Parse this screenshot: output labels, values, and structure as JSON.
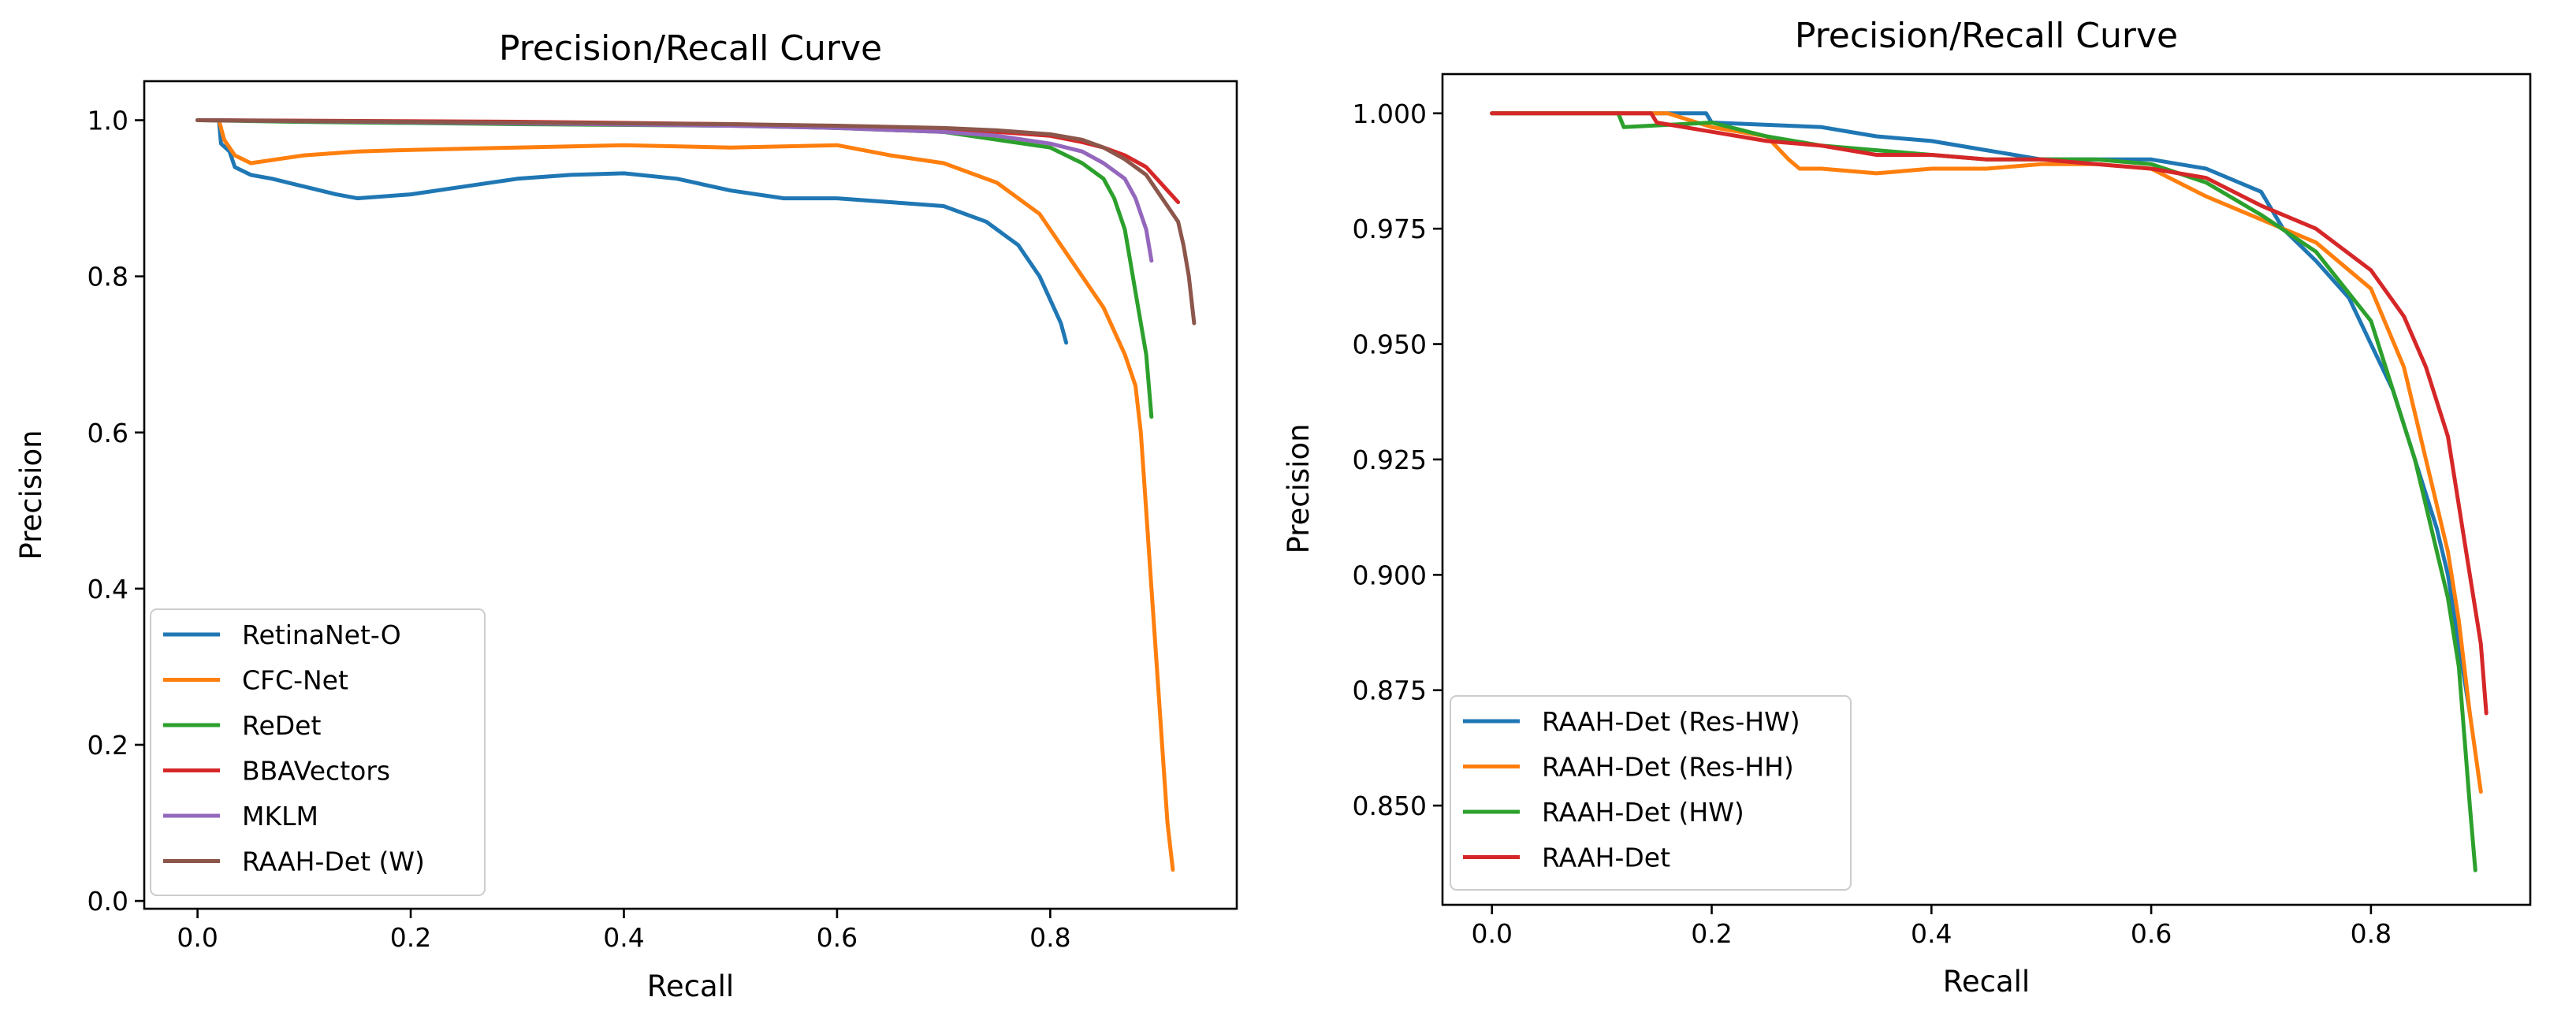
{
  "chart_data": [
    {
      "type": "line",
      "title": "Precision/Recall Curve",
      "xlabel": "Recall",
      "ylabel": "Precision",
      "xlim": [
        -0.05,
        0.975
      ],
      "ylim": [
        -0.01,
        1.05
      ],
      "xticks": [
        0.0,
        0.2,
        0.4,
        0.6,
        0.8
      ],
      "xtick_labels": [
        "0.0",
        "0.2",
        "0.4",
        "0.6",
        "0.8"
      ],
      "yticks": [
        0.0,
        0.2,
        0.4,
        0.6,
        0.8,
        1.0
      ],
      "ytick_labels": [
        "0.0",
        "0.2",
        "0.4",
        "0.6",
        "0.8",
        "1.0"
      ],
      "grid": false,
      "legend_position": "lower-left",
      "series": [
        {
          "name": "RetinaNet-O",
          "color": "#1f77b4",
          "x": [
            0.0,
            0.02,
            0.022,
            0.03,
            0.035,
            0.05,
            0.07,
            0.1,
            0.13,
            0.15,
            0.2,
            0.25,
            0.3,
            0.35,
            0.4,
            0.45,
            0.5,
            0.55,
            0.6,
            0.65,
            0.7,
            0.74,
            0.77,
            0.79,
            0.8,
            0.81,
            0.815
          ],
          "y": [
            1.0,
            1.0,
            0.97,
            0.96,
            0.94,
            0.93,
            0.925,
            0.915,
            0.905,
            0.9,
            0.905,
            0.915,
            0.925,
            0.93,
            0.932,
            0.925,
            0.91,
            0.9,
            0.9,
            0.895,
            0.89,
            0.87,
            0.84,
            0.8,
            0.77,
            0.74,
            0.715
          ]
        },
        {
          "name": "CFC-Net",
          "color": "#ff7f0e",
          "x": [
            0.0,
            0.02,
            0.025,
            0.035,
            0.05,
            0.1,
            0.15,
            0.2,
            0.3,
            0.4,
            0.5,
            0.6,
            0.65,
            0.7,
            0.75,
            0.79,
            0.82,
            0.85,
            0.87,
            0.88,
            0.885,
            0.89,
            0.895,
            0.9,
            0.905,
            0.91,
            0.915
          ],
          "y": [
            1.0,
            1.0,
            0.975,
            0.955,
            0.945,
            0.955,
            0.96,
            0.962,
            0.965,
            0.968,
            0.965,
            0.968,
            0.955,
            0.945,
            0.92,
            0.88,
            0.82,
            0.76,
            0.7,
            0.66,
            0.6,
            0.5,
            0.4,
            0.3,
            0.2,
            0.1,
            0.04
          ]
        },
        {
          "name": "ReDet",
          "color": "#2ca02c",
          "x": [
            0.0,
            0.09,
            0.3,
            0.5,
            0.6,
            0.7,
            0.75,
            0.8,
            0.83,
            0.85,
            0.86,
            0.87,
            0.875,
            0.88,
            0.885,
            0.89,
            0.895
          ],
          "y": [
            1.0,
            0.998,
            0.995,
            0.993,
            0.99,
            0.985,
            0.975,
            0.965,
            0.945,
            0.925,
            0.9,
            0.86,
            0.82,
            0.78,
            0.74,
            0.7,
            0.62
          ]
        },
        {
          "name": "BBAVectors",
          "color": "#d62728",
          "x": [
            0.0,
            0.3,
            0.5,
            0.6,
            0.7,
            0.75,
            0.8,
            0.83,
            0.85,
            0.87,
            0.89,
            0.9,
            0.91,
            0.92
          ],
          "y": [
            1.0,
            0.998,
            0.995,
            0.992,
            0.988,
            0.985,
            0.98,
            0.972,
            0.965,
            0.955,
            0.94,
            0.925,
            0.91,
            0.895
          ]
        },
        {
          "name": "MKLM",
          "color": "#9467bd",
          "x": [
            0.0,
            0.3,
            0.5,
            0.6,
            0.7,
            0.75,
            0.8,
            0.83,
            0.85,
            0.87,
            0.88,
            0.89,
            0.895
          ],
          "y": [
            1.0,
            0.996,
            0.993,
            0.99,
            0.985,
            0.98,
            0.97,
            0.96,
            0.945,
            0.925,
            0.9,
            0.86,
            0.82
          ]
        },
        {
          "name": "RAAH-Det (W)",
          "color": "#8c564b",
          "x": [
            0.0,
            0.3,
            0.5,
            0.6,
            0.7,
            0.75,
            0.8,
            0.83,
            0.85,
            0.87,
            0.89,
            0.9,
            0.91,
            0.92,
            0.925,
            0.93,
            0.935
          ],
          "y": [
            1.0,
            0.997,
            0.995,
            0.993,
            0.99,
            0.987,
            0.982,
            0.975,
            0.965,
            0.95,
            0.93,
            0.91,
            0.89,
            0.87,
            0.84,
            0.8,
            0.74
          ]
        }
      ]
    },
    {
      "type": "line",
      "title": "Precision/Recall Curve",
      "xlabel": "Recall",
      "ylabel": "Precision",
      "xlim": [
        -0.045,
        0.945
      ],
      "ylim": [
        0.8285,
        1.0085
      ],
      "xticks": [
        0.0,
        0.2,
        0.4,
        0.6,
        0.8
      ],
      "xtick_labels": [
        "0.0",
        "0.2",
        "0.4",
        "0.6",
        "0.8"
      ],
      "yticks": [
        0.85,
        0.875,
        0.9,
        0.925,
        0.95,
        0.975,
        1.0
      ],
      "ytick_labels": [
        "0.850",
        "0.875",
        "0.900",
        "0.925",
        "0.950",
        "0.975",
        "1.000"
      ],
      "grid": false,
      "legend_position": "lower-left",
      "series": [
        {
          "name": "RAAH-Det (Res-HW)",
          "color": "#1f77b4",
          "x": [
            0.0,
            0.195,
            0.2,
            0.3,
            0.35,
            0.4,
            0.45,
            0.5,
            0.55,
            0.6,
            0.65,
            0.7,
            0.72,
            0.75,
            0.78,
            0.8,
            0.82,
            0.84,
            0.86,
            0.87,
            0.88,
            0.89
          ],
          "y": [
            1.0,
            1.0,
            0.998,
            0.997,
            0.995,
            0.994,
            0.992,
            0.99,
            0.99,
            0.99,
            0.988,
            0.983,
            0.975,
            0.968,
            0.96,
            0.95,
            0.94,
            0.925,
            0.91,
            0.9,
            0.885,
            0.87
          ]
        },
        {
          "name": "RAAH-Det (Res-HH)",
          "color": "#ff7f0e",
          "x": [
            0.0,
            0.16,
            0.2,
            0.25,
            0.27,
            0.28,
            0.3,
            0.35,
            0.4,
            0.45,
            0.5,
            0.55,
            0.6,
            0.65,
            0.7,
            0.75,
            0.8,
            0.83,
            0.85,
            0.87,
            0.88,
            0.89,
            0.9
          ],
          "y": [
            1.0,
            1.0,
            0.997,
            0.995,
            0.99,
            0.988,
            0.988,
            0.987,
            0.988,
            0.988,
            0.989,
            0.989,
            0.988,
            0.982,
            0.977,
            0.972,
            0.962,
            0.945,
            0.925,
            0.905,
            0.89,
            0.87,
            0.853
          ]
        },
        {
          "name": "RAAH-Det (HW)",
          "color": "#2ca02c",
          "x": [
            0.0,
            0.115,
            0.12,
            0.2,
            0.25,
            0.3,
            0.35,
            0.4,
            0.45,
            0.5,
            0.55,
            0.6,
            0.65,
            0.7,
            0.75,
            0.8,
            0.82,
            0.84,
            0.85,
            0.86,
            0.87,
            0.88,
            0.885,
            0.89,
            0.895
          ],
          "y": [
            1.0,
            1.0,
            0.997,
            0.998,
            0.995,
            0.993,
            0.992,
            0.991,
            0.99,
            0.99,
            0.99,
            0.989,
            0.985,
            0.978,
            0.97,
            0.955,
            0.94,
            0.925,
            0.915,
            0.905,
            0.895,
            0.88,
            0.865,
            0.85,
            0.836
          ]
        },
        {
          "name": "RAAH-Det",
          "color": "#d62728",
          "x": [
            0.0,
            0.145,
            0.15,
            0.2,
            0.25,
            0.3,
            0.35,
            0.4,
            0.45,
            0.5,
            0.55,
            0.6,
            0.65,
            0.7,
            0.75,
            0.8,
            0.83,
            0.85,
            0.87,
            0.88,
            0.89,
            0.9,
            0.905
          ],
          "y": [
            1.0,
            1.0,
            0.998,
            0.996,
            0.994,
            0.993,
            0.991,
            0.991,
            0.99,
            0.99,
            0.989,
            0.988,
            0.986,
            0.98,
            0.975,
            0.966,
            0.956,
            0.945,
            0.93,
            0.915,
            0.9,
            0.885,
            0.87
          ]
        }
      ]
    }
  ]
}
